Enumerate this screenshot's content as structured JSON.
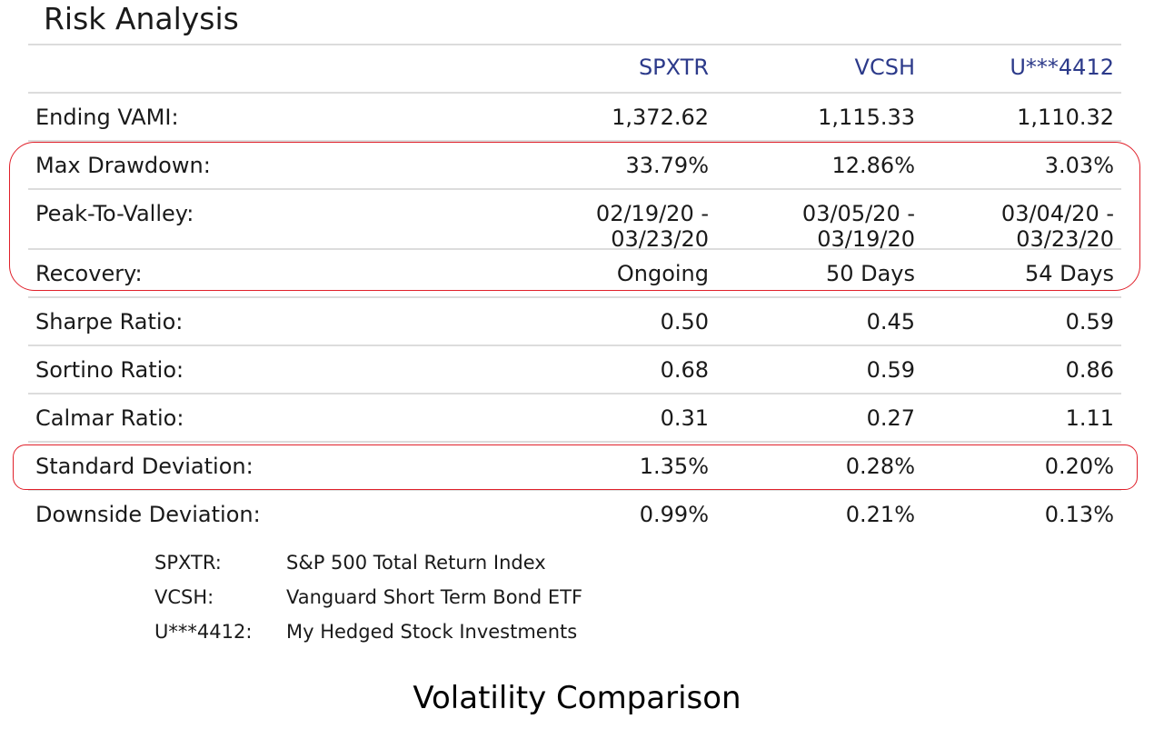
{
  "title": "Risk Analysis",
  "columns": [
    "SPXTR",
    "VCSH",
    "U***4412"
  ],
  "rows": [
    {
      "label": "Ending VAMI:",
      "values": [
        "1,372.62",
        "1,115.33",
        "1,110.32"
      ]
    },
    {
      "label": "Max Drawdown:",
      "values": [
        "33.79%",
        "12.86%",
        "3.03%"
      ]
    },
    {
      "label": "Peak-To-Valley:",
      "values": [
        "02/19/20 -\n03/23/20",
        "03/05/20 -\n03/19/20",
        "03/04/20 -\n03/23/20"
      ]
    },
    {
      "label": "Recovery:",
      "values": [
        "Ongoing",
        "50 Days",
        "54 Days"
      ]
    },
    {
      "label": "Sharpe Ratio:",
      "values": [
        "0.50",
        "0.45",
        "0.59"
      ]
    },
    {
      "label": "Sortino Ratio:",
      "values": [
        "0.68",
        "0.59",
        "0.86"
      ]
    },
    {
      "label": "Calmar Ratio:",
      "values": [
        "0.31",
        "0.27",
        "1.11"
      ]
    },
    {
      "label": "Standard Deviation:",
      "values": [
        "1.35%",
        "0.28%",
        "0.20%"
      ]
    },
    {
      "label": "Downside Deviation:",
      "values": [
        "0.99%",
        "0.21%",
        "0.13%"
      ]
    }
  ],
  "legend": [
    {
      "code": "SPXTR:",
      "desc": "S&P 500 Total Return Index"
    },
    {
      "code": "VCSH:",
      "desc": "Vanguard Short Term Bond ETF"
    },
    {
      "code": "U***4412:",
      "desc": "My Hedged Stock Investments"
    }
  ],
  "caption": "Volatility Comparison",
  "colors": {
    "header_text": "#2c3a8a",
    "highlight": "#e0202a",
    "divider": "#dcdcdc"
  }
}
